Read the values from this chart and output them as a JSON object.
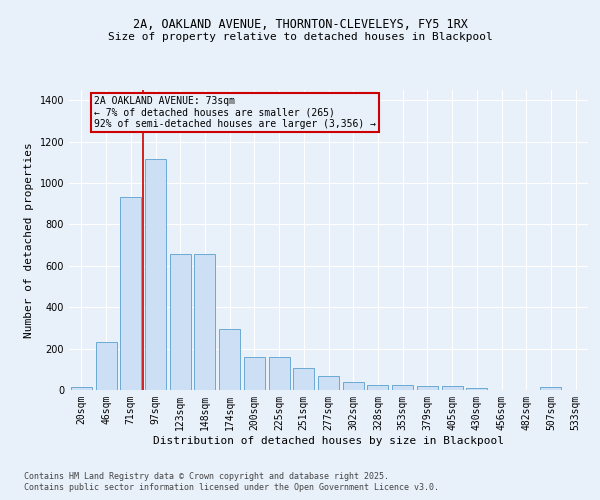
{
  "title1": "2A, OAKLAND AVENUE, THORNTON-CLEVELEYS, FY5 1RX",
  "title2": "Size of property relative to detached houses in Blackpool",
  "xlabel": "Distribution of detached houses by size in Blackpool",
  "ylabel": "Number of detached properties",
  "categories": [
    "20sqm",
    "46sqm",
    "71sqm",
    "97sqm",
    "123sqm",
    "148sqm",
    "174sqm",
    "200sqm",
    "225sqm",
    "251sqm",
    "277sqm",
    "302sqm",
    "328sqm",
    "353sqm",
    "379sqm",
    "405sqm",
    "430sqm",
    "456sqm",
    "482sqm",
    "507sqm",
    "533sqm"
  ],
  "values": [
    15,
    230,
    935,
    1115,
    655,
    655,
    295,
    160,
    160,
    105,
    70,
    40,
    25,
    25,
    20,
    20,
    12,
    0,
    0,
    15,
    0
  ],
  "bar_color": "#ccdff5",
  "bar_edge_color": "#6aaad4",
  "bg_color": "#e8f0fa",
  "vline_color": "#cc0000",
  "annotation_text": "2A OAKLAND AVENUE: 73sqm\n← 7% of detached houses are smaller (265)\n92% of semi-detached houses are larger (3,356) →",
  "annotation_box_facecolor": "#e8f0fa",
  "annotation_box_edgecolor": "#cc0000",
  "footnote1": "Contains HM Land Registry data © Crown copyright and database right 2025.",
  "footnote2": "Contains public sector information licensed under the Open Government Licence v3.0.",
  "ylim": [
    0,
    1450
  ],
  "yticks": [
    0,
    200,
    400,
    600,
    800,
    1000,
    1200,
    1400
  ],
  "vline_xindex": 2.5,
  "annot_xindex": 0.5,
  "title1_fontsize": 8.5,
  "title2_fontsize": 8,
  "footnote_fontsize": 6,
  "ylabel_fontsize": 8,
  "xlabel_fontsize": 8,
  "tick_fontsize": 7,
  "annot_fontsize": 7
}
